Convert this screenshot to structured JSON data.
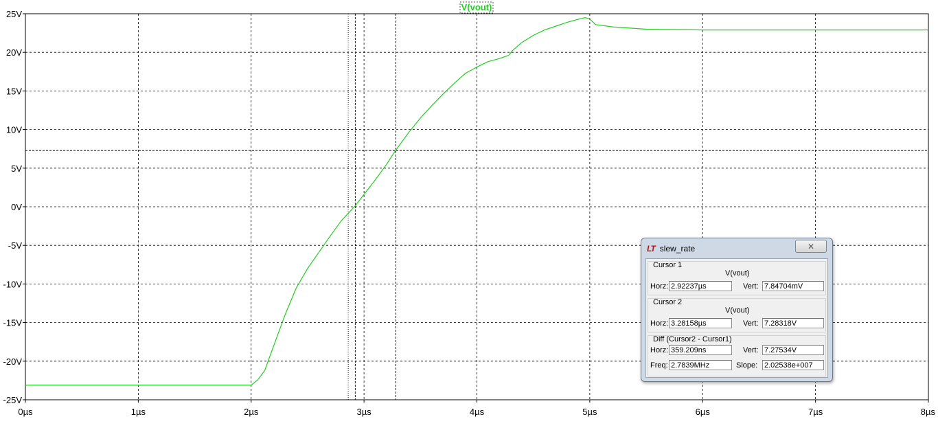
{
  "chart_data": {
    "type": "line",
    "trace_label": "V(vout)",
    "x_unit": "µs",
    "y_unit": "V",
    "xlim": [
      0,
      8
    ],
    "ylim": [
      -25,
      25
    ],
    "x_ticks": [
      0,
      1,
      2,
      3,
      4,
      5,
      6,
      7,
      8
    ],
    "y_ticks": [
      25,
      20,
      15,
      10,
      5,
      0,
      -5,
      -10,
      -15,
      -20,
      -25
    ],
    "x_tick_labels": [
      "0µs",
      "1µs",
      "2µs",
      "3µs",
      "4µs",
      "5µs",
      "6µs",
      "7µs",
      "8µs"
    ],
    "y_tick_labels": [
      "25V",
      "20V",
      "15V",
      "10V",
      "5V",
      "0V",
      "-5V",
      "-10V",
      "-15V",
      "-20V",
      "-25V"
    ],
    "grid": true,
    "series": [
      {
        "name": "V(vout)",
        "color": "#22cc22",
        "x": [
          0,
          2.0,
          2.06,
          2.12,
          2.2,
          2.3,
          2.4,
          2.5,
          2.6,
          2.7,
          2.8,
          2.92,
          3.0,
          3.1,
          3.2,
          3.28,
          3.4,
          3.5,
          3.6,
          3.7,
          3.8,
          3.9,
          4.0,
          4.1,
          4.2,
          4.28,
          4.32,
          4.4,
          4.5,
          4.6,
          4.7,
          4.8,
          4.9,
          4.96,
          5.0,
          5.05,
          5.2,
          5.5,
          6.0,
          6.5,
          7.0,
          7.5,
          8.0
        ],
        "y": [
          -23.1,
          -23.1,
          -22.4,
          -21.2,
          -18.0,
          -14.0,
          -10.5,
          -8.0,
          -5.9,
          -3.8,
          -1.8,
          0.1,
          1.6,
          3.5,
          5.5,
          7.3,
          9.7,
          11.5,
          13.1,
          14.6,
          16.0,
          17.3,
          18.1,
          18.8,
          19.2,
          19.6,
          20.3,
          21.3,
          22.2,
          22.9,
          23.4,
          23.9,
          24.3,
          24.5,
          24.3,
          23.6,
          23.3,
          23.0,
          22.9,
          22.9,
          22.9,
          22.9,
          22.9
        ]
      }
    ],
    "cursors": {
      "vertical_lines_x": [
        2.92237,
        3.28158
      ],
      "horizontal_line_y": 7.28318,
      "dotted_line_x": 2.86
    }
  },
  "dialog": {
    "title": "slew_rate",
    "logo": "LT",
    "close_glyph": "✕",
    "cursor1": {
      "label": "Cursor 1",
      "trace": "V(vout)",
      "horz_label": "Horz:",
      "horz_value": "2.92237µs",
      "vert_label": "Vert:",
      "vert_value": "7.84704mV"
    },
    "cursor2": {
      "label": "Cursor 2",
      "trace": "V(vout)",
      "horz_label": "Horz:",
      "horz_value": "3.28158µs",
      "vert_label": "Vert:",
      "vert_value": "7.28318V"
    },
    "diff": {
      "label": "Diff (Cursor2 - Cursor1)",
      "horz_label": "Horz:",
      "horz_value": "359.209ns",
      "vert_label": "Vert:",
      "vert_value": "7.27534V",
      "freq_label": "Freq:",
      "freq_value": "2.7839MHz",
      "slope_label": "Slope:",
      "slope_value": "2.02538e+007"
    }
  }
}
